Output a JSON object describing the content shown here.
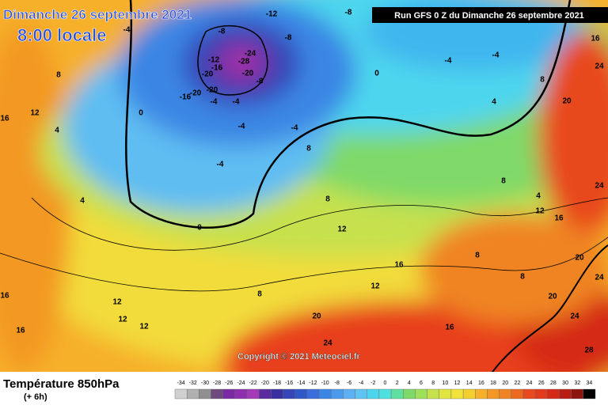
{
  "header": {
    "title": "Dimanche 26 septembre 2021",
    "time": "8:00 locale",
    "run": "Run GFS 0 Z du Dimanche 26 septembre 2021"
  },
  "map": {
    "copyright": "Copyright © 2021 Meteociel.fr",
    "contour_labels": [
      -4,
      -8,
      -12,
      -8,
      -24,
      -28,
      -12,
      -16,
      -20,
      -20,
      -16,
      -20,
      -20,
      -8,
      -4,
      -4,
      -4,
      -4,
      -4,
      -4,
      -4,
      -4,
      -8,
      0,
      0,
      0,
      4,
      4,
      8,
      8,
      12,
      12,
      16,
      16,
      16,
      12,
      12,
      8,
      8,
      12,
      16,
      16,
      20,
      24,
      20,
      24,
      24,
      20,
      24,
      28,
      24,
      16,
      4,
      8,
      8,
      8,
      16,
      12,
      8,
      4,
      12,
      20
    ]
  },
  "footer": {
    "title": "Température 850hPa",
    "step": "(+ 6h)",
    "scale": [
      -34,
      -32,
      -30,
      -28,
      -26,
      -24,
      -22,
      -20,
      -18,
      -16,
      -14,
      -12,
      -10,
      -8,
      -6,
      -4,
      -2,
      0,
      2,
      4,
      6,
      8,
      10,
      12,
      14,
      16,
      18,
      20,
      22,
      24,
      26,
      28,
      30,
      32,
      34
    ]
  }
}
